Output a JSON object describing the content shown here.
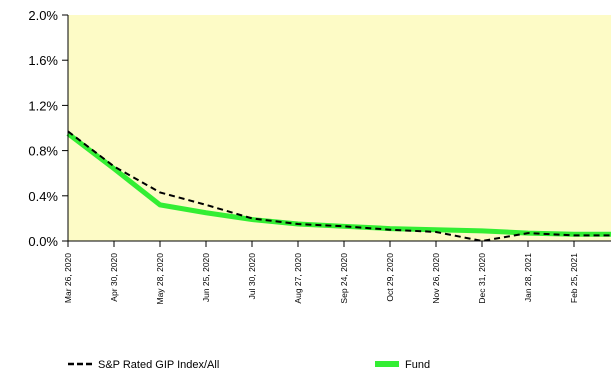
{
  "chart_data": {
    "type": "line",
    "categories": [
      "Mar 26, 2020",
      "Apr 30, 2020",
      "May 28, 2020",
      "Jun 25, 2020",
      "Jul 30, 2020",
      "Aug 27, 2020",
      "Sep 24, 2020",
      "Oct 29, 2020",
      "Nov 26, 2020",
      "Dec 31, 2020",
      "Jan 28, 2021",
      "Feb 25, 2021",
      null
    ],
    "series": [
      {
        "name": "S&P Rated GIP Index/All",
        "color": "#000000",
        "dashed": true,
        "values": [
          0.97,
          0.66,
          0.43,
          0.32,
          0.2,
          0.15,
          0.13,
          0.1,
          0.08,
          0.0,
          0.07,
          0.05,
          0.05
        ]
      },
      {
        "name": "Fund",
        "color": "#33ee33",
        "dashed": false,
        "values": [
          0.95,
          0.64,
          0.32,
          0.25,
          0.19,
          0.15,
          0.13,
          0.11,
          0.1,
          0.09,
          0.07,
          0.06,
          0.06
        ]
      }
    ],
    "ylim": [
      0,
      2.0
    ],
    "yticks": [
      {
        "value": 0,
        "label": "0.0%"
      },
      {
        "value": 0.4,
        "label": "0.4%"
      },
      {
        "value": 0.8,
        "label": "0.8%"
      },
      {
        "value": 1.2,
        "label": "1.2%"
      },
      {
        "value": 1.6,
        "label": "1.6%"
      },
      {
        "value": 2.0,
        "label": "2.0%"
      }
    ],
    "background": "#fdfbc6"
  }
}
